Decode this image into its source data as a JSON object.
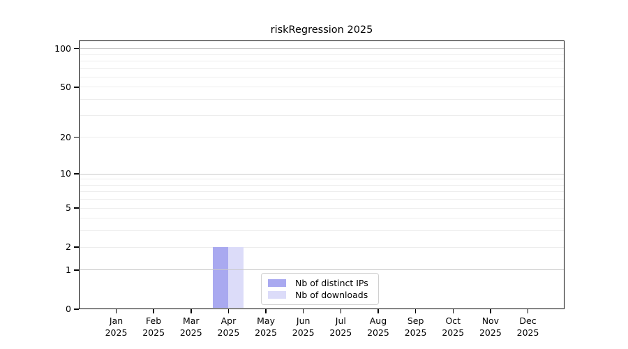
{
  "chart_data": {
    "type": "bar",
    "title": "riskRegression 2025",
    "categories": [
      "Jan\n2025",
      "Feb\n2025",
      "Mar\n2025",
      "Apr\n2025",
      "May\n2025",
      "Jun\n2025",
      "Jul\n2025",
      "Aug\n2025",
      "Sep\n2025",
      "Oct\n2025",
      "Nov\n2025",
      "Dec\n2025"
    ],
    "series": [
      {
        "name": "Nb of distinct IPs",
        "color": "#a9a9f0",
        "values": [
          0,
          0,
          0,
          2,
          0,
          0,
          0,
          0,
          0,
          0,
          0,
          0
        ]
      },
      {
        "name": "Nb of downloads",
        "color": "#dcdcf9",
        "values": [
          0,
          0,
          0,
          2,
          0,
          0,
          0,
          0,
          0,
          0,
          0,
          0
        ]
      }
    ],
    "xlabel": "",
    "ylabel": "",
    "yscale": "log1p",
    "yticks": [
      0,
      1,
      2,
      5,
      10,
      20,
      50,
      100
    ],
    "ylim": [
      0,
      115
    ],
    "grid": true,
    "legend_position": "bottom-center",
    "colors": {
      "axis": "#000000",
      "grid_decade": "#c8c8c8",
      "grid_minor": "#ededed",
      "background": "#ffffff",
      "text": "#000000"
    }
  }
}
